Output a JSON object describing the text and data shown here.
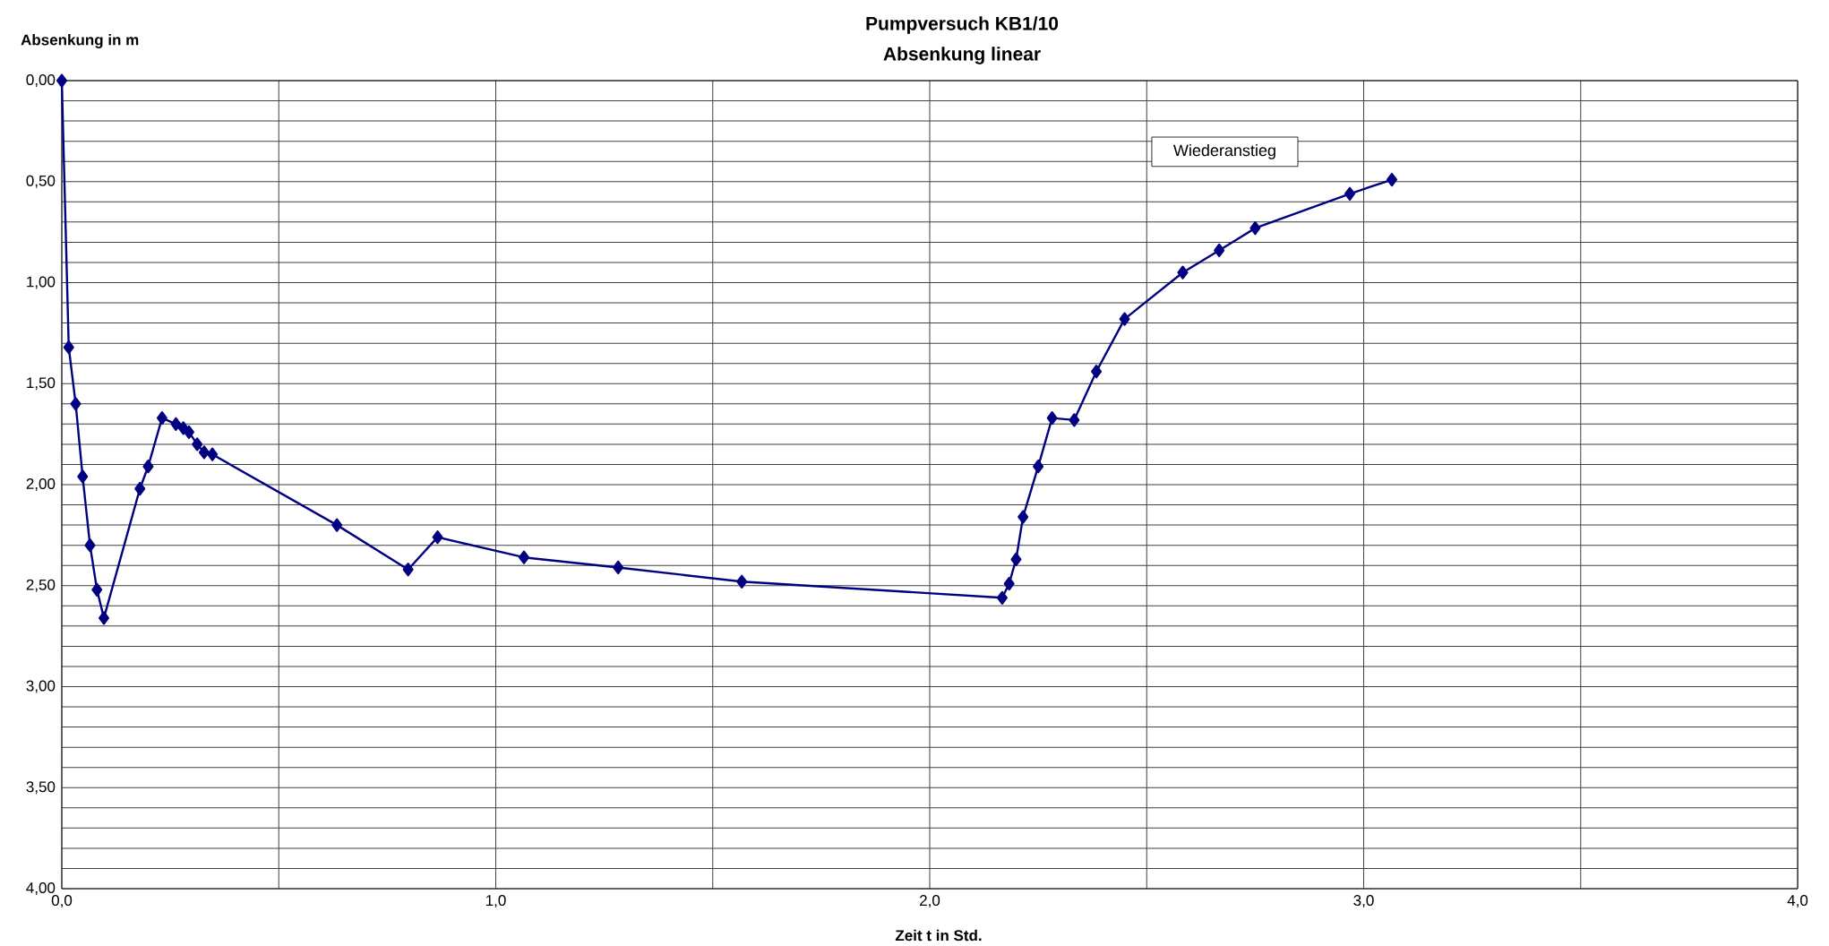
{
  "chart_data": {
    "type": "line",
    "title": "Pumpversuch KB1/10",
    "subtitle": "Absenkung linear",
    "xlabel": "Zeit t in Std.",
    "ylabel": "Absenkung in m",
    "annotations": [
      "Wiederanstieg"
    ],
    "x": [
      0,
      0.016,
      0.032,
      0.048,
      0.065,
      0.081,
      0.097,
      0.18,
      0.199,
      0.231,
      0.263,
      0.28,
      0.293,
      0.312,
      0.328,
      0.347,
      0.634,
      0.798,
      0.866,
      1.065,
      1.282,
      1.567,
      2.167,
      2.183,
      2.199,
      2.215,
      2.25,
      2.282,
      2.333,
      2.384,
      2.449,
      2.583,
      2.667,
      2.75,
      2.968,
      3.065
    ],
    "series": [
      {
        "color": "#000080",
        "values": [
          0,
          1.32,
          1.6,
          1.96,
          2.3,
          2.52,
          2.66,
          2.02,
          1.91,
          1.67,
          1.7,
          1.72,
          1.74,
          1.8,
          1.84,
          1.85,
          2.2,
          2.42,
          2.26,
          2.36,
          2.41,
          2.48,
          2.56,
          2.49,
          2.37,
          2.16,
          1.91,
          1.67,
          1.68,
          1.44,
          1.18,
          0.95,
          0.84,
          0.73,
          0.56,
          0.49
        ]
      }
    ],
    "xlim": [
      0,
      4
    ],
    "ylim": [
      4,
      0
    ],
    "xticks": [
      {
        "value": 0,
        "label": "0,0"
      },
      {
        "value": 0.5,
        "label": null
      },
      {
        "value": 1,
        "label": "1,0"
      },
      {
        "value": 1.5,
        "label": null
      },
      {
        "value": 2,
        "label": "2,0"
      },
      {
        "value": 2.5,
        "label": null
      },
      {
        "value": 3,
        "label": "3,0"
      },
      {
        "value": 3.5,
        "label": null
      },
      {
        "value": 4,
        "label": "4,0"
      }
    ],
    "yticks": [
      {
        "value": 0,
        "label": "0,00"
      },
      {
        "value": 0.1,
        "label": null
      },
      {
        "value": 0.2,
        "label": null
      },
      {
        "value": 0.3,
        "label": null
      },
      {
        "value": 0.4,
        "label": null
      },
      {
        "value": 0.5,
        "label": "0,50"
      },
      {
        "value": 0.6,
        "label": null
      },
      {
        "value": 0.7,
        "label": null
      },
      {
        "value": 0.8,
        "label": null
      },
      {
        "value": 0.9,
        "label": null
      },
      {
        "value": 1,
        "label": "1,00"
      },
      {
        "value": 1.1,
        "label": null
      },
      {
        "value": 1.2,
        "label": null
      },
      {
        "value": 1.3,
        "label": null
      },
      {
        "value": 1.4,
        "label": null
      },
      {
        "value": 1.5,
        "label": "1,50"
      },
      {
        "value": 1.6,
        "label": null
      },
      {
        "value": 1.7,
        "label": null
      },
      {
        "value": 1.8,
        "label": null
      },
      {
        "value": 1.9,
        "label": null
      },
      {
        "value": 2,
        "label": "2,00"
      },
      {
        "value": 2.1,
        "label": null
      },
      {
        "value": 2.2,
        "label": null
      },
      {
        "value": 2.3,
        "label": null
      },
      {
        "value": 2.4,
        "label": null
      },
      {
        "value": 2.5,
        "label": "2,50"
      },
      {
        "value": 2.6,
        "label": null
      },
      {
        "value": 2.7,
        "label": null
      },
      {
        "value": 2.8,
        "label": null
      },
      {
        "value": 2.9,
        "label": null
      },
      {
        "value": 3,
        "label": "3,00"
      },
      {
        "value": 3.1,
        "label": null
      },
      {
        "value": 3.2,
        "label": null
      },
      {
        "value": 3.3,
        "label": null
      },
      {
        "value": 3.4,
        "label": null
      },
      {
        "value": 3.5,
        "label": "3,50"
      },
      {
        "value": 3.6,
        "label": null
      },
      {
        "value": 3.7,
        "label": null
      },
      {
        "value": 3.8,
        "label": null
      },
      {
        "value": 3.9,
        "label": null
      },
      {
        "value": 4,
        "label": "4,00"
      }
    ],
    "grid": true,
    "marker": "diamond",
    "line_style": "solid"
  }
}
